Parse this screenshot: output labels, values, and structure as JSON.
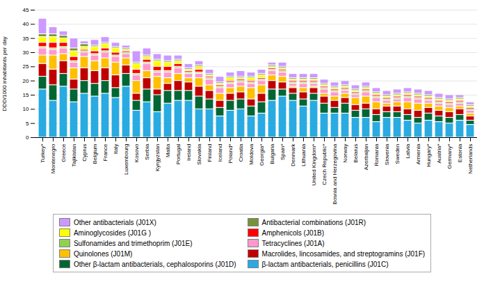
{
  "chart_data": {
    "type": "bar",
    "stacked": true,
    "grid": true,
    "ylabel": "DDD/1000 inhabitants per day",
    "ylim": [
      0,
      45
    ],
    "yticks": [
      0,
      5,
      10,
      15,
      20,
      25,
      30,
      35,
      40,
      45
    ],
    "categories": [
      "Turkey*",
      "Montenegro",
      "Greece",
      "Tajikistan",
      "Cyprus",
      "Belgium",
      "France",
      "Italy",
      "Luxembourg",
      "Kosovo",
      "Serbia",
      "Kyrgyzstan",
      "Malta",
      "Portugal",
      "Ireland",
      "Slovakia",
      "Finland",
      "Iceland",
      "Poland*",
      "Croatia",
      "Moldova",
      "Georgia*",
      "Bulgaria",
      "Spain*",
      "Denmark",
      "Lithuania",
      "United Kingdom*",
      "Czech Republic*",
      "Bosnia and Herzegovina",
      "Norway",
      "Belarus",
      "Azerbaijan",
      "Romania",
      "Slovenia",
      "Sweden",
      "Latvia",
      "Armenia",
      "Hungary*",
      "Austria*",
      "Germany*",
      "Estonia",
      "Netherlands"
    ],
    "series": [
      {
        "name": "β-lactam antibacterials, penicillins (J01C)",
        "color": "#29ABE2",
        "values": [
          17.0,
          13.0,
          18.0,
          12.5,
          15.5,
          14.5,
          15.5,
          14.0,
          18.0,
          9.5,
          12.5,
          9.0,
          12.0,
          13.0,
          13.0,
          10.0,
          10.0,
          7.5,
          9.5,
          10.0,
          7.5,
          8.5,
          13.0,
          14.5,
          13.0,
          11.0,
          13.0,
          8.5,
          8.5,
          8.5,
          7.0,
          7.0,
          5.5,
          7.0,
          7.0,
          6.0,
          5.0,
          6.0,
          5.5,
          5.0,
          6.0,
          4.5
        ]
      },
      {
        "name": "Other β-lactam antibacterials, cephalosporins (J01D)",
        "color": "#006633",
        "values": [
          4.5,
          5.5,
          4.5,
          4.5,
          4.5,
          4.5,
          4.5,
          3.5,
          4.5,
          3.5,
          4.5,
          6.0,
          4.5,
          3.5,
          3.5,
          4.5,
          3.5,
          3.0,
          3.5,
          3.5,
          3.5,
          4.0,
          4.0,
          2.5,
          2.5,
          2.5,
          2.5,
          3.5,
          2.0,
          3.5,
          2.5,
          3.0,
          2.5,
          2.0,
          2.0,
          2.0,
          2.0,
          2.5,
          2.0,
          2.0,
          2.0,
          1.5
        ]
      },
      {
        "name": "Macrolides, lincosamides, and streptogramins (J01F)",
        "color": "#C00000",
        "values": [
          4.5,
          5.5,
          4.5,
          3.5,
          4.5,
          4.5,
          4.5,
          4.5,
          3.0,
          2.5,
          4.0,
          2.0,
          2.5,
          3.5,
          3.0,
          3.5,
          3.0,
          2.5,
          2.5,
          2.5,
          2.5,
          3.0,
          3.0,
          2.5,
          2.0,
          2.5,
          2.0,
          2.5,
          2.5,
          2.0,
          2.0,
          2.0,
          2.0,
          2.0,
          2.0,
          2.0,
          2.5,
          2.0,
          2.0,
          2.0,
          2.0,
          1.5
        ]
      },
      {
        "name": "Quinolones (J01M)",
        "color": "#FFC000",
        "values": [
          3.0,
          5.0,
          2.5,
          4.0,
          4.0,
          3.5,
          3.5,
          4.5,
          2.5,
          4.5,
          2.5,
          4.5,
          2.0,
          2.5,
          1.5,
          3.0,
          2.0,
          2.5,
          2.0,
          2.0,
          4.0,
          3.0,
          2.0,
          2.0,
          0.5,
          1.5,
          0.5,
          1.0,
          1.5,
          1.5,
          2.5,
          2.5,
          2.5,
          1.0,
          1.5,
          2.5,
          2.5,
          1.5,
          1.5,
          1.5,
          1.0,
          1.0
        ]
      },
      {
        "name": "Tetracyclines (J01A)",
        "color": "#FF99CC",
        "values": [
          2.5,
          2.0,
          2.0,
          2.0,
          1.5,
          2.0,
          2.0,
          2.0,
          1.5,
          2.0,
          2.5,
          1.5,
          2.0,
          2.0,
          1.5,
          1.5,
          2.0,
          2.0,
          1.5,
          1.5,
          1.5,
          1.5,
          1.5,
          1.5,
          1.0,
          1.5,
          1.0,
          1.5,
          1.5,
          1.0,
          1.0,
          1.5,
          1.5,
          1.0,
          1.0,
          1.5,
          1.5,
          1.0,
          1.0,
          1.0,
          1.0,
          1.0
        ]
      },
      {
        "name": "Sulfonamides and trimethoprim (J01E)",
        "color": "#92D050",
        "values": [
          0.5,
          0.5,
          0.5,
          0.5,
          0.5,
          0.5,
          0.5,
          0.5,
          0.5,
          0.5,
          0.5,
          0.5,
          0.5,
          0.5,
          0.5,
          0.5,
          0.5,
          0.5,
          0.5,
          0.5,
          0.5,
          0.5,
          0.5,
          0.5,
          0.5,
          0.5,
          0.5,
          0.5,
          0.5,
          0.5,
          0.5,
          0.5,
          0.5,
          0.5,
          0.5,
          0.5,
          0.5,
          0.5,
          0.5,
          0.5,
          0.5,
          0.5
        ]
      },
      {
        "name": "Amphenicols (J01B)",
        "color": "#FF0000",
        "values": [
          1.5,
          2.0,
          1.5,
          1.5,
          0.5,
          1.0,
          1.0,
          1.0,
          0.5,
          1.5,
          1.0,
          1.5,
          1.5,
          1.0,
          0.5,
          1.0,
          0.5,
          0.5,
          0.5,
          0.5,
          0.5,
          0.5,
          0.5,
          0.5,
          0.5,
          0.5,
          0.5,
          0.5,
          0.5,
          0.5,
          0.5,
          0.5,
          0.5,
          0.5,
          0.5,
          0.5,
          0.5,
          0.5,
          0.5,
          0.5,
          0.5,
          0.5
        ]
      },
      {
        "name": "Aminoglycosides (J01G )",
        "color": "#FFFF00",
        "values": [
          2.0,
          2.0,
          1.5,
          2.0,
          1.0,
          1.5,
          1.5,
          1.5,
          0.5,
          2.0,
          1.0,
          2.0,
          1.5,
          1.0,
          0.5,
          1.0,
          0.5,
          0.5,
          1.0,
          0.5,
          1.0,
          1.0,
          0.5,
          0.5,
          0.5,
          0.5,
          0.5,
          0.5,
          0.5,
          0.5,
          0.5,
          0.5,
          0.5,
          0.5,
          0.5,
          0.5,
          0.5,
          0.5,
          0.5,
          0.5,
          0.5,
          0.5
        ]
      },
      {
        "name": "Antibacterial combinations (J01R)",
        "color": "#76933C",
        "values": [
          1.0,
          1.0,
          1.0,
          1.0,
          1.0,
          0.5,
          0.5,
          0.5,
          0.5,
          0.5,
          0.5,
          0.5,
          0.5,
          0.5,
          0.5,
          0.5,
          0.5,
          0.5,
          0.5,
          0.5,
          0.5,
          0.5,
          0.5,
          0.5,
          0.5,
          0.5,
          0.5,
          0.5,
          0.5,
          0.5,
          0.5,
          0.5,
          0.5,
          0.5,
          0.5,
          0.5,
          0.5,
          0.5,
          0.5,
          0.5,
          0.5,
          0.5
        ]
      },
      {
        "name": "Other antibacterials (J01X)",
        "color": "#CC99FF",
        "values": [
          5.5,
          2.5,
          1.5,
          3.5,
          1.0,
          2.0,
          2.0,
          1.5,
          1.0,
          4.0,
          2.5,
          2.0,
          2.0,
          1.5,
          1.5,
          1.5,
          1.5,
          2.0,
          1.5,
          2.0,
          1.5,
          1.5,
          1.0,
          1.5,
          1.5,
          1.5,
          1.5,
          1.5,
          1.5,
          1.5,
          1.5,
          1.5,
          1.5,
          1.5,
          1.5,
          1.5,
          1.5,
          1.5,
          1.5,
          1.5,
          1.0,
          1.0
        ]
      }
    ]
  }
}
